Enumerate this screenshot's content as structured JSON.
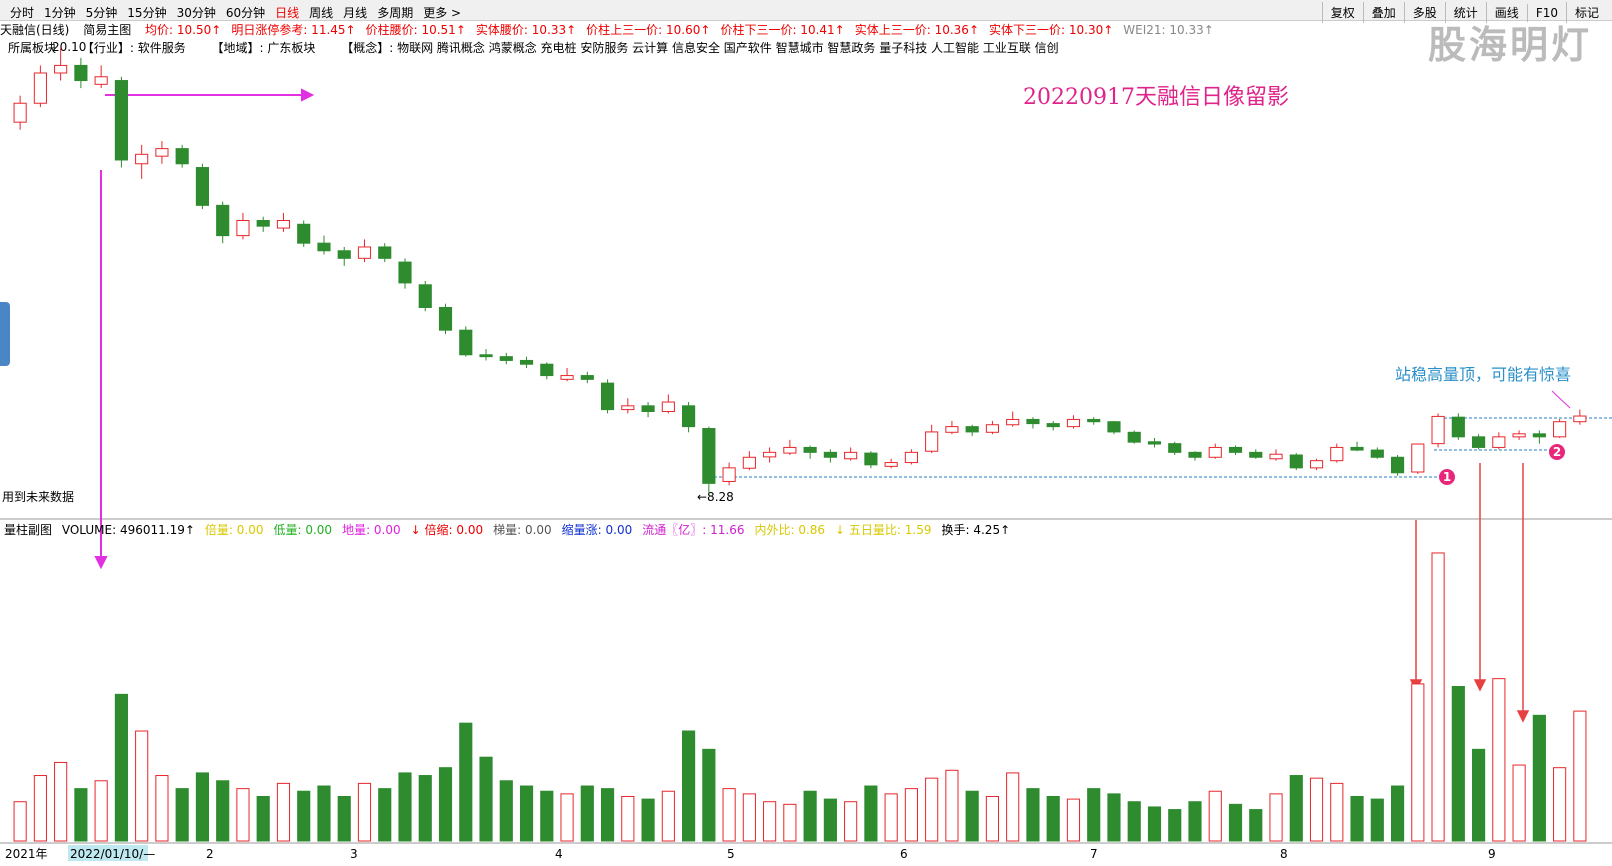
{
  "toolbar": {
    "periods": [
      "分时",
      "1分钟",
      "5分钟",
      "15分钟",
      "30分钟",
      "60分钟",
      "日线",
      "周线",
      "月线",
      "多周期",
      "更多 >"
    ],
    "tools": [
      "复权",
      "叠加",
      "多股",
      "统计",
      "画线",
      "F10",
      "标记"
    ]
  },
  "header": {
    "stock": "天融信(日线)",
    "template": "简易主图",
    "indicators": [
      "均价: 10.50↑",
      "明日涨停参考: 11.45↑",
      "价柱腰价: 10.51↑",
      "实体腰价: 10.33↑",
      "价柱上三一价: 10.60↑",
      "价柱下三一价: 10.41↑",
      "实体上三一价: 10.36↑",
      "实体下三一价: 10.30↑",
      "WEI21: 10.33↑"
    ]
  },
  "info": {
    "sector_label": "所属板块",
    "industry": "【行业】: 软件服务",
    "region": "【地域】: 广东板块",
    "concepts": "【概念】: 物联网 腾讯概念 鸿蒙概念 充电桩 安防服务 云计算 信息安全 国产软件 智慧城市 智慧政务 量子科技 人工智能 工业互联 信创"
  },
  "annotations": {
    "title": "20220917天融信日像留影",
    "note": "站稳高量顶，可能有惊喜",
    "future_data": "用到未来数据",
    "high_label": "20.10",
    "low_label": "←8.28",
    "marker_1": "1",
    "marker_2": "2"
  },
  "volume_header": {
    "name": "量柱副图",
    "indicators": [
      "VOLUME: 496011.19↑",
      "倍量: 0.00",
      "低量: 0.00",
      "地量: 0.00",
      "↓ 倍缩: 0.00",
      "梯量: 0.00",
      "缩量涨: 0.00",
      "流通〖亿〗: 11.66",
      "内外比: 0.86",
      "↓ 五日量比: 1.59",
      "换手: 4.25↑"
    ]
  },
  "time_axis": [
    "2021年",
    "2022/01/10/—",
    "2",
    "3",
    "4",
    "5",
    "6",
    "7",
    "8",
    "9"
  ],
  "watermark": "股海明灯",
  "chart_data": [
    {
      "type": "candlestick",
      "ylim": [
        7.74,
        20.51
      ],
      "up_color": "#e8262b",
      "down_color": "#2e8b2e",
      "ohlc": [
        [
          18.1,
          18.8,
          17.9,
          18.6
        ],
        [
          18.6,
          19.6,
          18.5,
          19.4
        ],
        [
          19.4,
          20.1,
          19.2,
          19.6
        ],
        [
          19.6,
          19.8,
          19.0,
          19.2
        ],
        [
          19.1,
          19.6,
          19.0,
          19.3
        ],
        [
          19.2,
          19.3,
          16.9,
          17.1
        ],
        [
          17.0,
          17.5,
          16.6,
          17.25
        ],
        [
          17.2,
          17.6,
          17.0,
          17.4
        ],
        [
          17.4,
          17.5,
          16.9,
          17.0
        ],
        [
          16.9,
          17.0,
          15.8,
          15.9
        ],
        [
          15.9,
          16.0,
          14.9,
          15.1
        ],
        [
          15.1,
          15.7,
          15.0,
          15.5
        ],
        [
          15.5,
          15.6,
          15.2,
          15.35
        ],
        [
          15.3,
          15.7,
          15.2,
          15.5
        ],
        [
          15.4,
          15.5,
          14.8,
          14.9
        ],
        [
          14.9,
          15.1,
          14.6,
          14.7
        ],
        [
          14.7,
          14.8,
          14.3,
          14.5
        ],
        [
          14.5,
          15.0,
          14.4,
          14.8
        ],
        [
          14.8,
          14.9,
          14.4,
          14.5
        ],
        [
          14.4,
          14.5,
          13.7,
          13.85
        ],
        [
          13.8,
          13.9,
          13.1,
          13.2
        ],
        [
          13.2,
          13.3,
          12.5,
          12.6
        ],
        [
          12.6,
          12.7,
          11.9,
          11.95
        ],
        [
          11.95,
          12.1,
          11.8,
          11.9
        ],
        [
          11.9,
          12.0,
          11.7,
          11.8
        ],
        [
          11.8,
          11.9,
          11.6,
          11.7
        ],
        [
          11.7,
          11.75,
          11.3,
          11.4
        ],
        [
          11.3,
          11.6,
          11.25,
          11.4
        ],
        [
          11.4,
          11.5,
          11.2,
          11.3
        ],
        [
          11.2,
          11.3,
          10.4,
          10.5
        ],
        [
          10.5,
          10.8,
          10.4,
          10.6
        ],
        [
          10.6,
          10.7,
          10.3,
          10.45
        ],
        [
          10.45,
          10.9,
          10.4,
          10.7
        ],
        [
          10.6,
          10.7,
          9.9,
          10.05
        ],
        [
          10.0,
          10.05,
          8.28,
          8.55
        ],
        [
          8.6,
          9.1,
          8.5,
          8.96
        ],
        [
          8.95,
          9.4,
          8.9,
          9.24
        ],
        [
          9.25,
          9.5,
          9.1,
          9.37
        ],
        [
          9.35,
          9.7,
          9.3,
          9.5
        ],
        [
          9.5,
          9.55,
          9.2,
          9.37
        ],
        [
          9.37,
          9.45,
          9.1,
          9.24
        ],
        [
          9.2,
          9.5,
          9.15,
          9.37
        ],
        [
          9.35,
          9.4,
          8.95,
          9.04
        ],
        [
          9.0,
          9.2,
          8.95,
          9.1
        ],
        [
          9.1,
          9.45,
          9.05,
          9.37
        ],
        [
          9.4,
          10.1,
          9.35,
          9.91
        ],
        [
          9.9,
          10.2,
          9.85,
          10.05
        ],
        [
          10.05,
          10.1,
          9.8,
          9.91
        ],
        [
          9.9,
          10.2,
          9.85,
          10.1
        ],
        [
          10.1,
          10.45,
          10.05,
          10.24
        ],
        [
          10.24,
          10.3,
          10.0,
          10.13
        ],
        [
          10.13,
          10.2,
          9.95,
          10.05
        ],
        [
          10.05,
          10.35,
          10.0,
          10.24
        ],
        [
          10.24,
          10.3,
          10.1,
          10.18
        ],
        [
          10.18,
          10.2,
          9.85,
          9.91
        ],
        [
          9.9,
          9.95,
          9.6,
          9.64
        ],
        [
          9.65,
          9.75,
          9.5,
          9.59
        ],
        [
          9.6,
          9.65,
          9.3,
          9.37
        ],
        [
          9.37,
          9.4,
          9.15,
          9.24
        ],
        [
          9.24,
          9.6,
          9.2,
          9.5
        ],
        [
          9.5,
          9.55,
          9.3,
          9.37
        ],
        [
          9.37,
          9.45,
          9.2,
          9.24
        ],
        [
          9.2,
          9.45,
          9.15,
          9.32
        ],
        [
          9.3,
          9.35,
          8.9,
          8.96
        ],
        [
          8.96,
          9.2,
          8.9,
          9.15
        ],
        [
          9.15,
          9.6,
          9.1,
          9.5
        ],
        [
          9.5,
          9.65,
          9.4,
          9.43
        ],
        [
          9.43,
          9.5,
          9.2,
          9.24
        ],
        [
          9.24,
          9.3,
          8.75,
          8.83
        ],
        [
          8.85,
          9.6,
          8.8,
          9.59
        ],
        [
          9.6,
          10.4,
          9.5,
          10.32
        ],
        [
          10.3,
          10.4,
          9.7,
          9.78
        ],
        [
          9.78,
          9.85,
          9.45,
          9.5
        ],
        [
          9.5,
          9.9,
          9.45,
          9.78
        ],
        [
          9.78,
          9.95,
          9.7,
          9.86
        ],
        [
          9.86,
          9.95,
          9.6,
          9.78
        ],
        [
          9.78,
          10.25,
          9.75,
          10.18
        ],
        [
          10.18,
          10.5,
          10.1,
          10.33
        ]
      ]
    },
    {
      "type": "bar",
      "ylim": [
        0,
        1180000
      ],
      "up_color": "#e8262b",
      "down_color": "#2e8b2e",
      "values": [
        150000,
        250000,
        300000,
        200000,
        230000,
        560000,
        420000,
        250000,
        200000,
        260000,
        230000,
        200000,
        170000,
        220000,
        190000,
        210000,
        170000,
        220000,
        200000,
        260000,
        250000,
        280000,
        450000,
        320000,
        230000,
        210000,
        190000,
        180000,
        210000,
        200000,
        170000,
        160000,
        190000,
        420000,
        350000,
        200000,
        180000,
        150000,
        140000,
        190000,
        160000,
        150000,
        210000,
        180000,
        200000,
        240000,
        270000,
        190000,
        170000,
        260000,
        200000,
        170000,
        160000,
        200000,
        180000,
        150000,
        130000,
        120000,
        150000,
        190000,
        140000,
        120000,
        180000,
        250000,
        240000,
        220000,
        170000,
        160000,
        210000,
        600000,
        1100000,
        590000,
        350000,
        620000,
        290000,
        480000,
        280000,
        496011.19
      ]
    }
  ]
}
